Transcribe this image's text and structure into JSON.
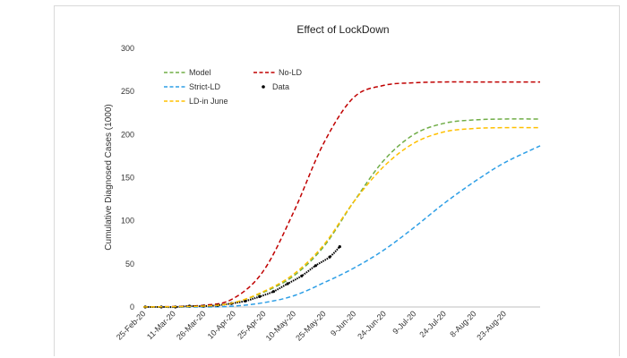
{
  "chart_data": {
    "type": "line",
    "title": "Effect of LockDown",
    "xlabel": "",
    "ylabel": "Cumulative Diagnosed Cases (1000)",
    "ylim": [
      0,
      300
    ],
    "yticks": [
      0,
      50,
      100,
      150,
      200,
      250,
      300
    ],
    "xlim": [
      "2020-02-25",
      "2020-09-10"
    ],
    "xticks": [
      "25-Feb-20",
      "11-Mar-20",
      "26-Mar-20",
      "10-Apr-20",
      "25-Apr-20",
      "10-May-20",
      "25-May-20",
      "9-Jun-20",
      "24-Jun-20",
      "9-Jul-20",
      "24-Jul-20",
      "8-Aug-20",
      "23-Aug-20"
    ],
    "grid": false,
    "legend_position": "top-left",
    "series": [
      {
        "name": "Model",
        "style": "dashed",
        "color": "#70ad47",
        "x": [
          "2020-02-25",
          "2020-03-26",
          "2020-04-10",
          "2020-04-25",
          "2020-05-10",
          "2020-05-25",
          "2020-06-09",
          "2020-06-24",
          "2020-07-09",
          "2020-07-24",
          "2020-08-08",
          "2020-08-23",
          "2020-09-10"
        ],
        "y": [
          0,
          1,
          5,
          17,
          36,
          70,
          122,
          170,
          200,
          213,
          217,
          218,
          218
        ]
      },
      {
        "name": "No-LD",
        "style": "dashed",
        "color": "#c00000",
        "x": [
          "2020-02-25",
          "2020-03-26",
          "2020-04-10",
          "2020-04-25",
          "2020-05-10",
          "2020-05-25",
          "2020-06-09",
          "2020-06-24",
          "2020-07-09",
          "2020-07-24",
          "2020-08-08",
          "2020-08-23",
          "2020-09-10"
        ],
        "y": [
          0,
          2,
          10,
          42,
          110,
          190,
          243,
          257,
          260,
          261,
          261,
          261,
          261
        ]
      },
      {
        "name": "Strict-LD",
        "style": "dashed",
        "color": "#2e9fe6",
        "x": [
          "2020-02-25",
          "2020-03-26",
          "2020-04-10",
          "2020-04-25",
          "2020-05-10",
          "2020-05-25",
          "2020-06-09",
          "2020-06-24",
          "2020-07-09",
          "2020-07-24",
          "2020-08-08",
          "2020-08-23",
          "2020-09-10"
        ],
        "y": [
          0,
          0,
          1,
          5,
          13,
          28,
          45,
          66,
          92,
          120,
          145,
          167,
          187
        ]
      },
      {
        "name": "Data",
        "style": "points",
        "color": "#000000",
        "x": [
          "2020-02-26",
          "2020-03-05",
          "2020-03-12",
          "2020-03-19",
          "2020-03-26",
          "2020-04-02",
          "2020-04-09",
          "2020-04-16",
          "2020-04-23",
          "2020-04-30",
          "2020-05-07",
          "2020-05-14",
          "2020-05-21",
          "2020-05-28",
          "2020-06-02"
        ],
        "y": [
          0,
          0,
          0,
          1,
          1,
          2,
          4,
          7,
          12,
          18,
          27,
          36,
          48,
          58,
          70
        ]
      },
      {
        "name": "LD-in June",
        "style": "dashed",
        "color": "#ffc000",
        "x": [
          "2020-02-25",
          "2020-03-26",
          "2020-04-10",
          "2020-04-25",
          "2020-05-10",
          "2020-05-25",
          "2020-06-09",
          "2020-06-24",
          "2020-07-09",
          "2020-07-24",
          "2020-08-08",
          "2020-08-23",
          "2020-09-10"
        ],
        "y": [
          0,
          1,
          5,
          18,
          38,
          72,
          122,
          163,
          190,
          203,
          207,
          208,
          208
        ]
      }
    ]
  }
}
